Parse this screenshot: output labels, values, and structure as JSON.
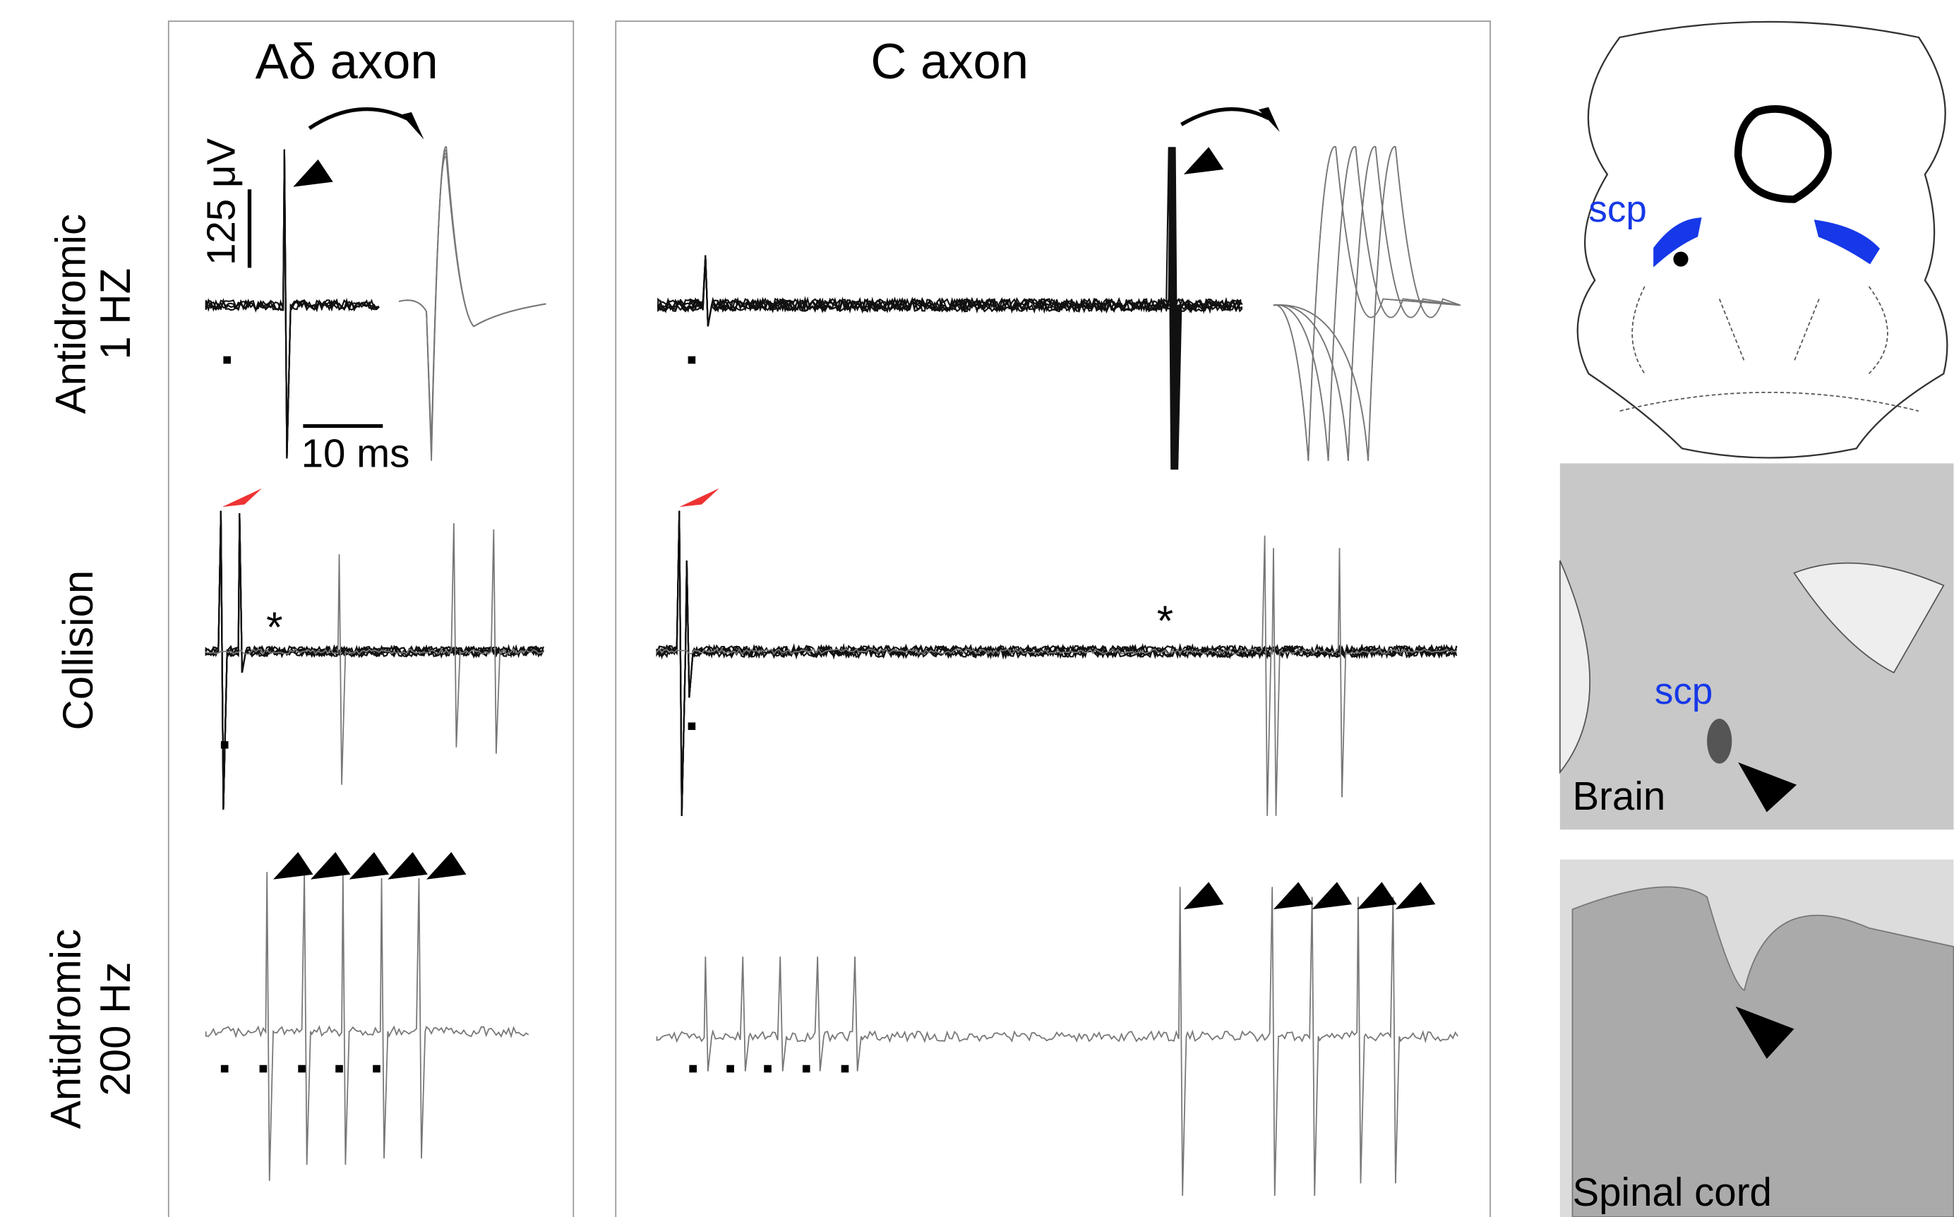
{
  "panels": {
    "a_delta": {
      "title": "Aδ axon"
    },
    "c": {
      "title": "C axon"
    }
  },
  "rows": [
    {
      "label": [
        "Antidromic",
        "1 HZ"
      ]
    },
    {
      "label": [
        "Collision"
      ]
    },
    {
      "label": [
        "Antidromic",
        "200 Hz"
      ]
    }
  ],
  "scale_bar": {
    "voltage": "125 μV",
    "time": "10 ms"
  },
  "annotations": {
    "asterisk_a_delta": "*",
    "asterisk_c": "*"
  },
  "atlas": {
    "label": "scp"
  },
  "histology": {
    "brain": {
      "scp": "scp",
      "label": "Brain"
    },
    "spinal": {
      "label": "Spinal cord"
    }
  }
}
